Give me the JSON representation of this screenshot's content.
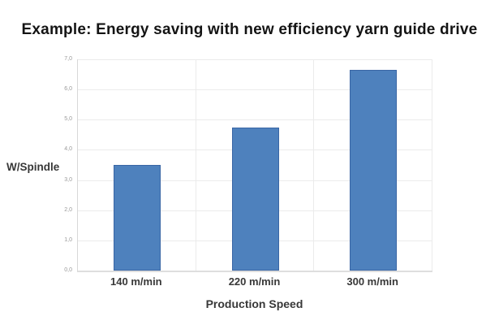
{
  "chart_data": {
    "type": "bar",
    "title": "Example: Energy saving with new efficiency yarn guide drive",
    "categories": [
      "140 m/min",
      "220 m/min",
      "300 m/min"
    ],
    "values": [
      3.5,
      4.75,
      6.65
    ],
    "xlabel": "Production Speed",
    "ylabel": "W/Spindle",
    "ylim": [
      0,
      7
    ],
    "ytick_step": 1,
    "ytick_labels": [
      "0,0",
      "1,0",
      "2,0",
      "3,0",
      "4,0",
      "5,0",
      "6,0",
      "7,0"
    ],
    "grid": true,
    "legend": false,
    "colors": {
      "bar_fill": "#4E81BD",
      "bar_border": "#3A66A5"
    }
  }
}
